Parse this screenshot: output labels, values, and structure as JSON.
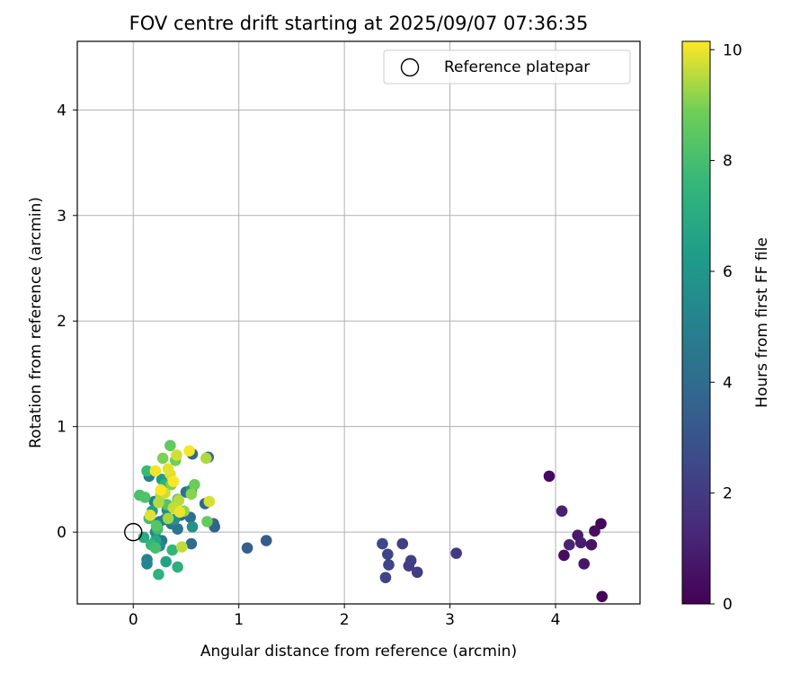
{
  "chart_data": {
    "type": "scatter",
    "title": "FOV centre drift starting at 2025/09/07 07:36:35",
    "xlabel": "Angular distance from reference (arcmin)",
    "ylabel": "Rotation from reference (arcmin)",
    "xlim": [
      -0.53,
      4.8
    ],
    "ylim": [
      -0.68,
      4.65
    ],
    "xticks": [
      0,
      1,
      2,
      3,
      4
    ],
    "yticks": [
      0,
      1,
      2,
      3,
      4
    ],
    "grid": true,
    "legend": {
      "position": "top-right",
      "entries": [
        "Reference platepar"
      ]
    },
    "colorbar": {
      "label": "Hours from first FF file",
      "colormap": "viridis",
      "range": [
        0,
        10.15
      ],
      "ticks": [
        0,
        2,
        4,
        6,
        8,
        10
      ]
    },
    "reference_point": {
      "label": "Reference platepar",
      "x": 0,
      "y": 0
    },
    "points": [
      {
        "x": 4.44,
        "y": -0.61,
        "h": 0.1
      },
      {
        "x": 4.43,
        "y": 0.08,
        "h": 0.2
      },
      {
        "x": 3.94,
        "y": 0.53,
        "h": 0.3
      },
      {
        "x": 4.08,
        "y": -0.22,
        "h": 0.4
      },
      {
        "x": 4.37,
        "y": 0.01,
        "h": 0.5
      },
      {
        "x": 4.34,
        "y": -0.12,
        "h": 0.6
      },
      {
        "x": 4.27,
        "y": -0.3,
        "h": 0.7
      },
      {
        "x": 4.21,
        "y": -0.03,
        "h": 0.8
      },
      {
        "x": 4.24,
        "y": -0.1,
        "h": 0.9
      },
      {
        "x": 4.06,
        "y": 0.2,
        "h": 1.0
      },
      {
        "x": 4.13,
        "y": -0.12,
        "h": 1.15
      },
      {
        "x": 3.06,
        "y": -0.2,
        "h": 2.0
      },
      {
        "x": 2.69,
        "y": -0.38,
        "h": 2.05
      },
      {
        "x": 2.63,
        "y": -0.27,
        "h": 2.1
      },
      {
        "x": 2.61,
        "y": -0.32,
        "h": 2.15
      },
      {
        "x": 2.55,
        "y": -0.11,
        "h": 2.2
      },
      {
        "x": 2.42,
        "y": -0.31,
        "h": 2.3
      },
      {
        "x": 2.41,
        "y": -0.21,
        "h": 2.35
      },
      {
        "x": 2.39,
        "y": -0.43,
        "h": 2.4
      },
      {
        "x": 2.36,
        "y": -0.11,
        "h": 2.45
      },
      {
        "x": 1.26,
        "y": -0.08,
        "h": 3.3
      },
      {
        "x": 1.08,
        "y": -0.15,
        "h": 3.45
      },
      {
        "x": 0.76,
        "y": 0.08,
        "h": 3.6
      },
      {
        "x": 0.77,
        "y": 0.05,
        "h": 3.65
      },
      {
        "x": 0.71,
        "y": 0.71,
        "h": 3.7
      },
      {
        "x": 0.68,
        "y": 0.27,
        "h": 3.8
      },
      {
        "x": 0.56,
        "y": 0.74,
        "h": 3.9
      },
      {
        "x": 0.55,
        "y": -0.11,
        "h": 4.0
      },
      {
        "x": 0.54,
        "y": 0.14,
        "h": 4.1
      },
      {
        "x": 0.5,
        "y": 0.38,
        "h": 4.2
      },
      {
        "x": 0.45,
        "y": 0.16,
        "h": 4.3
      },
      {
        "x": 0.42,
        "y": 0.03,
        "h": 4.4
      },
      {
        "x": 0.36,
        "y": 0.08,
        "h": 4.5
      },
      {
        "x": 0.3,
        "y": 0.12,
        "h": 4.6
      },
      {
        "x": 0.27,
        "y": -0.08,
        "h": 4.7
      },
      {
        "x": 0.25,
        "y": 0.1,
        "h": 4.8
      },
      {
        "x": 0.2,
        "y": 0.29,
        "h": 4.9
      },
      {
        "x": 0.15,
        "y": 0.53,
        "h": 5.0
      },
      {
        "x": 0.13,
        "y": -0.26,
        "h": 5.1
      },
      {
        "x": 0.13,
        "y": -0.3,
        "h": 5.2
      },
      {
        "x": 0.21,
        "y": 0.0,
        "h": 5.3
      },
      {
        "x": 0.25,
        "y": -0.13,
        "h": 5.4
      },
      {
        "x": 0.32,
        "y": 0.21,
        "h": 5.5
      },
      {
        "x": 0.39,
        "y": 0.12,
        "h": 5.6
      },
      {
        "x": 0.56,
        "y": 0.05,
        "h": 5.8
      },
      {
        "x": 0.55,
        "y": 0.4,
        "h": 6.0
      },
      {
        "x": 0.27,
        "y": 0.5,
        "h": 6.2
      },
      {
        "x": 0.18,
        "y": 0.2,
        "h": 6.4
      },
      {
        "x": 0.31,
        "y": -0.28,
        "h": 6.6
      },
      {
        "x": 0.21,
        "y": -0.08,
        "h": 6.8
      },
      {
        "x": 0.1,
        "y": -0.05,
        "h": 7.0
      },
      {
        "x": 0.42,
        "y": -0.33,
        "h": 7.2
      },
      {
        "x": 0.24,
        "y": -0.4,
        "h": 7.3
      },
      {
        "x": 0.3,
        "y": 0.45,
        "h": 7.4
      },
      {
        "x": 0.37,
        "y": -0.17,
        "h": 7.5
      },
      {
        "x": 0.17,
        "y": -0.12,
        "h": 7.6
      },
      {
        "x": 0.13,
        "y": 0.58,
        "h": 7.7
      },
      {
        "x": 0.23,
        "y": 0.03,
        "h": 7.8
      },
      {
        "x": 0.15,
        "y": 0.13,
        "h": 7.9
      },
      {
        "x": 0.21,
        "y": -0.15,
        "h": 8.0
      },
      {
        "x": 0.06,
        "y": 0.35,
        "h": 8.1
      },
      {
        "x": 0.11,
        "y": 0.33,
        "h": 8.2
      },
      {
        "x": 0.32,
        "y": 0.26,
        "h": 8.3
      },
      {
        "x": 0.22,
        "y": 0.06,
        "h": 8.4
      },
      {
        "x": 0.42,
        "y": 0.31,
        "h": 8.5
      },
      {
        "x": 0.35,
        "y": 0.82,
        "h": 8.6
      },
      {
        "x": 0.7,
        "y": 0.1,
        "h": 8.7
      },
      {
        "x": 0.58,
        "y": 0.45,
        "h": 8.8
      },
      {
        "x": 0.4,
        "y": 0.68,
        "h": 8.9
      },
      {
        "x": 0.28,
        "y": 0.7,
        "h": 9.0
      },
      {
        "x": 0.36,
        "y": 0.45,
        "h": 9.05
      },
      {
        "x": 0.55,
        "y": 0.36,
        "h": 9.1
      },
      {
        "x": 0.48,
        "y": 0.2,
        "h": 9.2
      },
      {
        "x": 0.33,
        "y": 0.13,
        "h": 9.3
      },
      {
        "x": 0.26,
        "y": 0.35,
        "h": 9.4
      },
      {
        "x": 0.69,
        "y": 0.7,
        "h": 9.45
      },
      {
        "x": 0.24,
        "y": 0.28,
        "h": 9.5
      },
      {
        "x": 0.43,
        "y": 0.3,
        "h": 9.55
      },
      {
        "x": 0.46,
        "y": -0.14,
        "h": 9.6
      },
      {
        "x": 0.38,
        "y": 0.23,
        "h": 9.65
      },
      {
        "x": 0.3,
        "y": 0.37,
        "h": 9.7
      },
      {
        "x": 0.41,
        "y": 0.73,
        "h": 9.75
      },
      {
        "x": 0.72,
        "y": 0.29,
        "h": 9.8
      },
      {
        "x": 0.35,
        "y": 0.55,
        "h": 9.85
      },
      {
        "x": 0.16,
        "y": 0.16,
        "h": 9.9
      },
      {
        "x": 0.33,
        "y": 0.6,
        "h": 9.95
      },
      {
        "x": 0.44,
        "y": 0.19,
        "h": 10.0
      },
      {
        "x": 0.21,
        "y": 0.58,
        "h": 10.05
      },
      {
        "x": 0.53,
        "y": 0.77,
        "h": 10.1
      },
      {
        "x": 0.38,
        "y": 0.48,
        "h": 10.12
      },
      {
        "x": 0.26,
        "y": 0.4,
        "h": 10.15
      }
    ]
  }
}
